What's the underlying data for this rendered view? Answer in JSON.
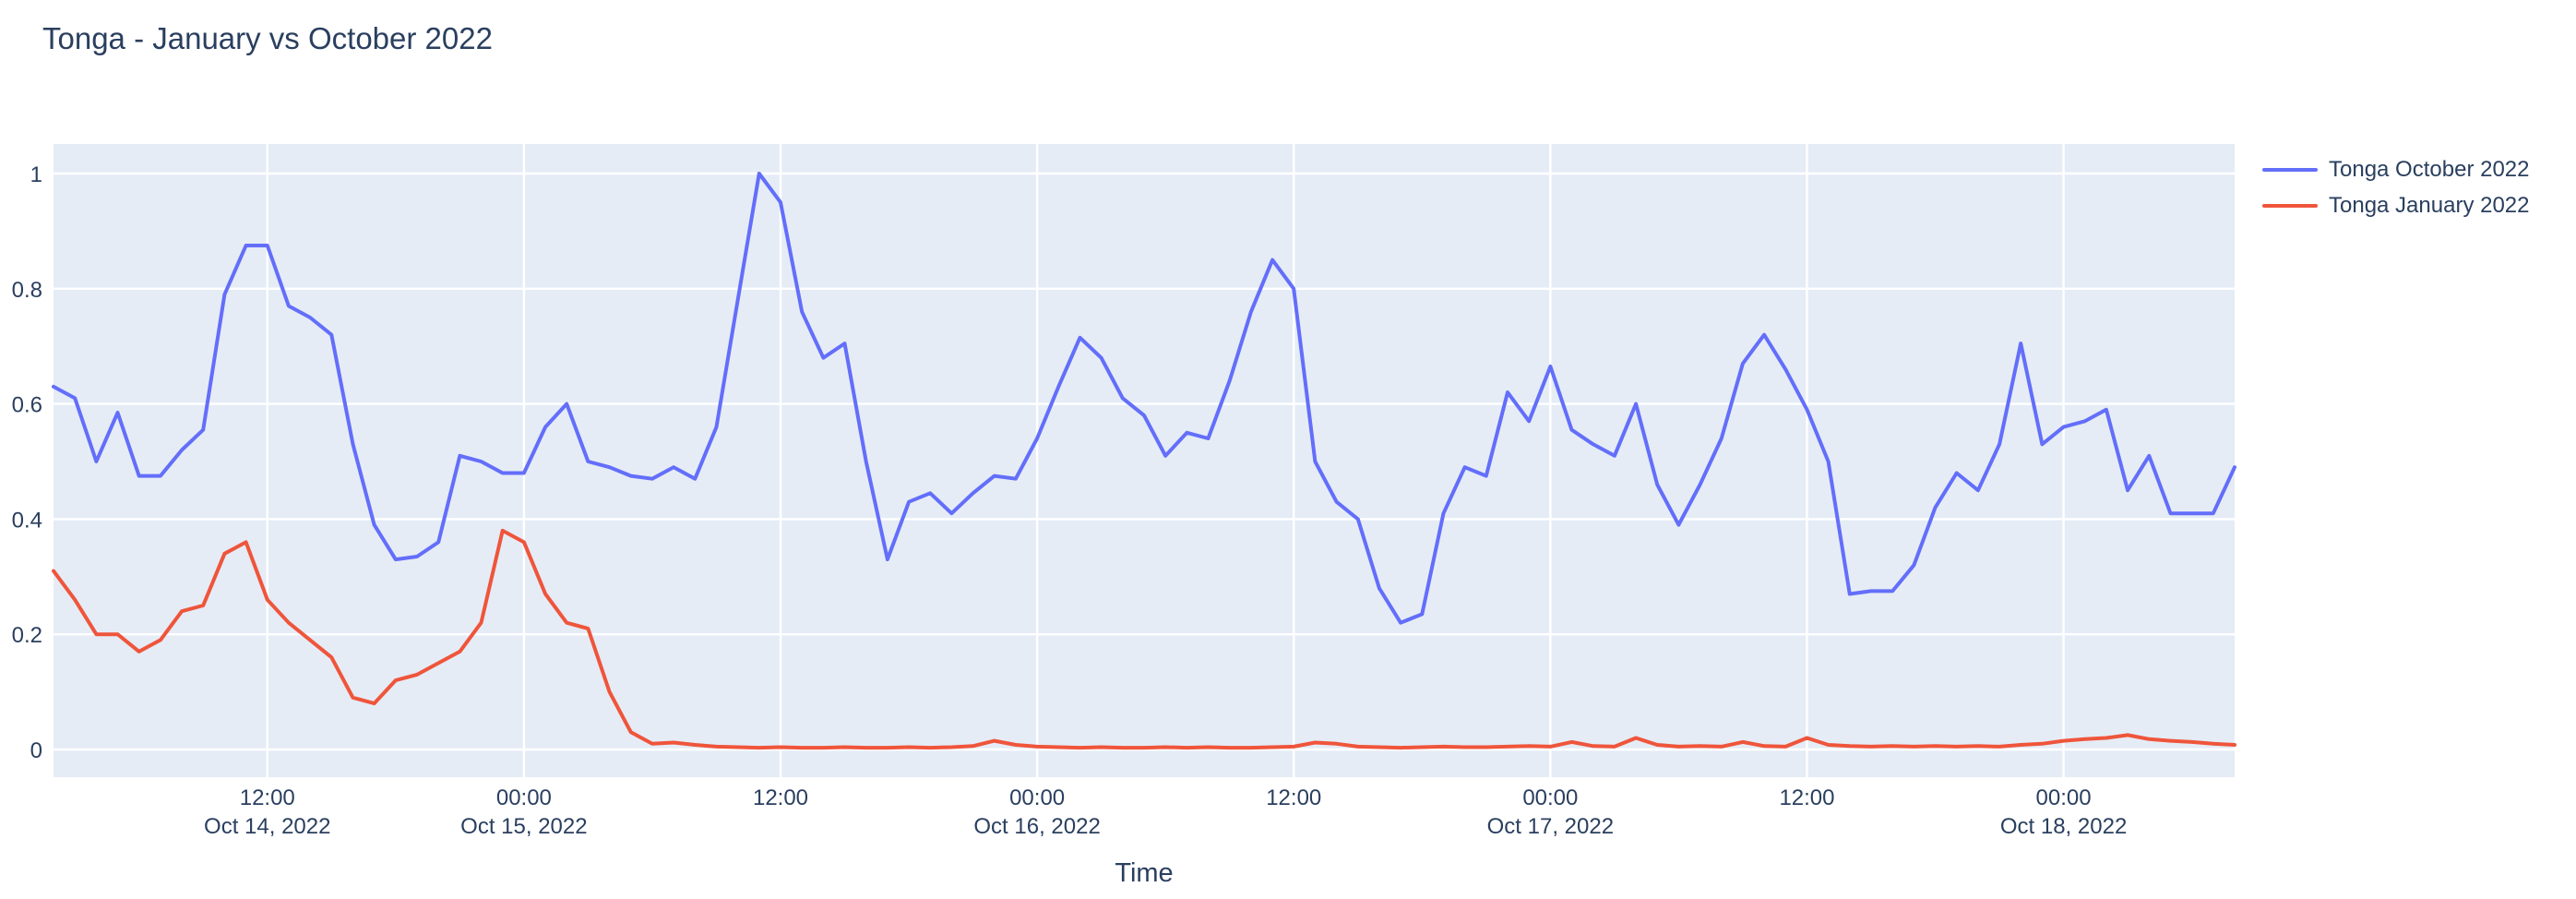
{
  "chart_data": {
    "type": "line",
    "title": "Tonga - January vs October 2022",
    "xlabel": "Time",
    "ylabel": "",
    "x_start": "2022-10-14 02:00",
    "x_step": "1 hour",
    "n_points": 103,
    "ylim": [
      0,
      1
    ],
    "grid": true,
    "legend_position": "right",
    "colors": {
      "plot_background": "#E5ECF6",
      "grid": "#FFFFFF",
      "text": "#2A3F5F",
      "title": "#2A3F5F"
    },
    "yticks": [
      {
        "value": 0,
        "label": "0"
      },
      {
        "value": 0.2,
        "label": "0.2"
      },
      {
        "value": 0.4,
        "label": "0.4"
      },
      {
        "value": 0.6,
        "label": "0.6"
      },
      {
        "value": 0.8,
        "label": "0.8"
      },
      {
        "value": 1,
        "label": "1"
      }
    ],
    "xticks": [
      {
        "index": 10,
        "label": "12:00",
        "date": "Oct 14, 2022"
      },
      {
        "index": 22,
        "label": "00:00",
        "date": "Oct 15, 2022"
      },
      {
        "index": 34,
        "label": "12:00",
        "date": ""
      },
      {
        "index": 46,
        "label": "00:00",
        "date": "Oct 16, 2022"
      },
      {
        "index": 58,
        "label": "12:00",
        "date": ""
      },
      {
        "index": 70,
        "label": "00:00",
        "date": "Oct 17, 2022"
      },
      {
        "index": 82,
        "label": "12:00",
        "date": ""
      },
      {
        "index": 94,
        "label": "00:00",
        "date": "Oct 18, 2022"
      }
    ],
    "series": [
      {
        "name": "Tonga October 2022",
        "color": "#636EFA",
        "values": [
          0.63,
          0.61,
          0.5,
          0.585,
          0.475,
          0.475,
          0.52,
          0.555,
          0.79,
          0.875,
          0.875,
          0.77,
          0.75,
          0.72,
          0.53,
          0.39,
          0.33,
          0.335,
          0.36,
          0.51,
          0.5,
          0.48,
          0.48,
          0.56,
          0.6,
          0.5,
          0.49,
          0.475,
          0.47,
          0.49,
          0.47,
          0.56,
          0.78,
          1.0,
          0.95,
          0.76,
          0.68,
          0.705,
          0.5,
          0.33,
          0.43,
          0.445,
          0.41,
          0.445,
          0.475,
          0.47,
          0.54,
          0.63,
          0.715,
          0.68,
          0.61,
          0.58,
          0.51,
          0.55,
          0.54,
          0.64,
          0.76,
          0.85,
          0.8,
          0.5,
          0.43,
          0.4,
          0.28,
          0.22,
          0.235,
          0.41,
          0.49,
          0.475,
          0.62,
          0.57,
          0.665,
          0.555,
          0.53,
          0.51,
          0.6,
          0.46,
          0.39,
          0.46,
          0.54,
          0.67,
          0.72,
          0.66,
          0.59,
          0.5,
          0.27,
          0.275,
          0.275,
          0.32,
          0.42,
          0.48,
          0.45,
          0.53,
          0.705,
          0.53,
          0.56,
          0.57,
          0.59,
          0.45,
          0.51,
          0.41,
          0.41,
          0.41,
          0.49
        ]
      },
      {
        "name": "Tonga January 2022",
        "color": "#EF553B",
        "values": [
          0.31,
          0.26,
          0.2,
          0.2,
          0.17,
          0.19,
          0.24,
          0.25,
          0.34,
          0.36,
          0.26,
          0.22,
          0.19,
          0.16,
          0.09,
          0.08,
          0.12,
          0.13,
          0.15,
          0.17,
          0.22,
          0.38,
          0.36,
          0.27,
          0.22,
          0.21,
          0.1,
          0.03,
          0.01,
          0.012,
          0.008,
          0.005,
          0.004,
          0.003,
          0.004,
          0.003,
          0.003,
          0.004,
          0.003,
          0.003,
          0.004,
          0.003,
          0.004,
          0.006,
          0.015,
          0.008,
          0.005,
          0.004,
          0.003,
          0.004,
          0.003,
          0.003,
          0.004,
          0.003,
          0.004,
          0.003,
          0.003,
          0.004,
          0.005,
          0.012,
          0.01,
          0.005,
          0.004,
          0.003,
          0.004,
          0.005,
          0.004,
          0.004,
          0.005,
          0.006,
          0.005,
          0.013,
          0.006,
          0.005,
          0.02,
          0.008,
          0.005,
          0.006,
          0.005,
          0.013,
          0.006,
          0.005,
          0.02,
          0.008,
          0.006,
          0.005,
          0.006,
          0.005,
          0.006,
          0.005,
          0.006,
          0.005,
          0.008,
          0.01,
          0.015,
          0.018,
          0.02,
          0.025,
          0.018,
          0.015,
          0.013,
          0.01,
          0.008
        ]
      }
    ]
  }
}
